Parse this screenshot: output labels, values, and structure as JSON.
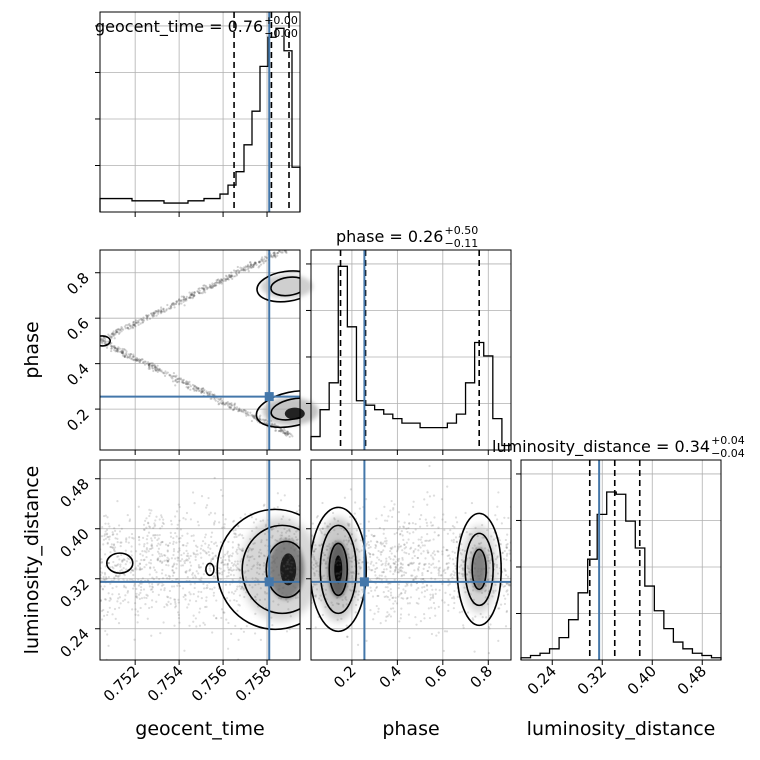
{
  "chart_data": {
    "type": "corner",
    "parameters": [
      "geocent_time",
      "phase",
      "luminosity_distance"
    ],
    "axis_labels": {
      "x": [
        "geocent_time",
        "phase",
        "luminosity_distance"
      ],
      "y": [
        "phase",
        "luminosity_distance"
      ]
    },
    "titles": [
      {
        "param": "geocent_time",
        "text": "geocent_time = 0.76",
        "plus": "+0.00",
        "minus": "−0.00"
      },
      {
        "param": "phase",
        "text": "phase = 0.26",
        "plus": "+0.50",
        "minus": "−0.11"
      },
      {
        "param": "luminosity_distance",
        "text": "luminosity_distance = 0.34",
        "plus": "+0.04",
        "minus": "−0.04"
      }
    ],
    "ranges": {
      "geocent_time": [
        0.7504,
        0.7595
      ],
      "phase": [
        0.02,
        0.9
      ],
      "luminosity_distance": [
        0.19,
        0.51
      ]
    },
    "ticks": {
      "geocent_time": {
        "values": [
          0.752,
          0.754,
          0.756,
          0.758
        ],
        "labels": [
          "0.752",
          "0.754",
          "0.756",
          "0.758"
        ]
      },
      "phase": {
        "values": [
          0.2,
          0.4,
          0.6,
          0.8
        ],
        "labels": [
          "0.2",
          "0.4",
          "0.6",
          "0.8"
        ]
      },
      "luminosity_distance": {
        "values": [
          0.24,
          0.32,
          0.4,
          0.48
        ],
        "labels": [
          "0.24",
          "0.32",
          "0.40",
          "0.48"
        ]
      }
    },
    "truths": {
      "geocent_time": 0.7581,
      "phase": 0.255,
      "luminosity_distance": 0.315
    },
    "quantiles": {
      "geocent_time": [
        0.7565,
        0.7582,
        0.759
      ],
      "phase": [
        0.15,
        0.26,
        0.76
      ],
      "luminosity_distance": [
        0.3,
        0.34,
        0.38
      ]
    },
    "histograms": {
      "geocent_time": [
        0.06,
        0.06,
        0.06,
        0.06,
        0.05,
        0.05,
        0.05,
        0.05,
        0.04,
        0.04,
        0.04,
        0.05,
        0.05,
        0.06,
        0.06,
        0.08,
        0.12,
        0.18,
        0.3,
        0.45,
        0.65,
        0.78,
        0.82,
        0.72,
        0.2
      ],
      "phase": [
        0.06,
        0.18,
        0.3,
        0.82,
        0.55,
        0.22,
        0.2,
        0.18,
        0.16,
        0.14,
        0.12,
        0.12,
        0.1,
        0.1,
        0.1,
        0.12,
        0.16,
        0.3,
        0.48,
        0.42,
        0.14,
        0.02
      ],
      "luminosity_distance": [
        0.01,
        0.02,
        0.03,
        0.05,
        0.1,
        0.18,
        0.3,
        0.45,
        0.65,
        0.75,
        0.74,
        0.62,
        0.5,
        0.33,
        0.22,
        0.14,
        0.08,
        0.05,
        0.03,
        0.02,
        0.01
      ]
    },
    "grid": true
  },
  "colors": {
    "truth": "#4477aa",
    "contour": "#000000",
    "grid": "#b0b0b0"
  }
}
